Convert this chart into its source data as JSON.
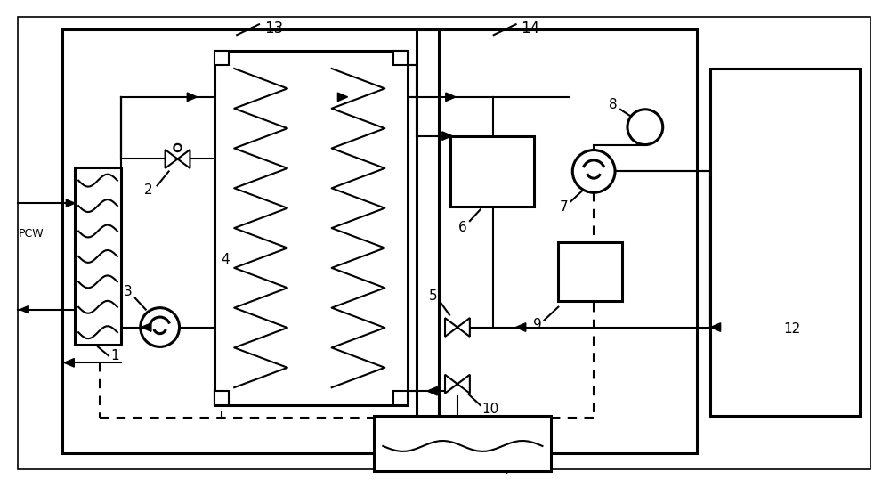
{
  "bg_color": "#ffffff",
  "line_color": "#000000",
  "lw": 1.5,
  "lw_thick": 2.2,
  "lw_dashed": 1.5,
  "fig_width": 10.0,
  "fig_height": 5.48
}
